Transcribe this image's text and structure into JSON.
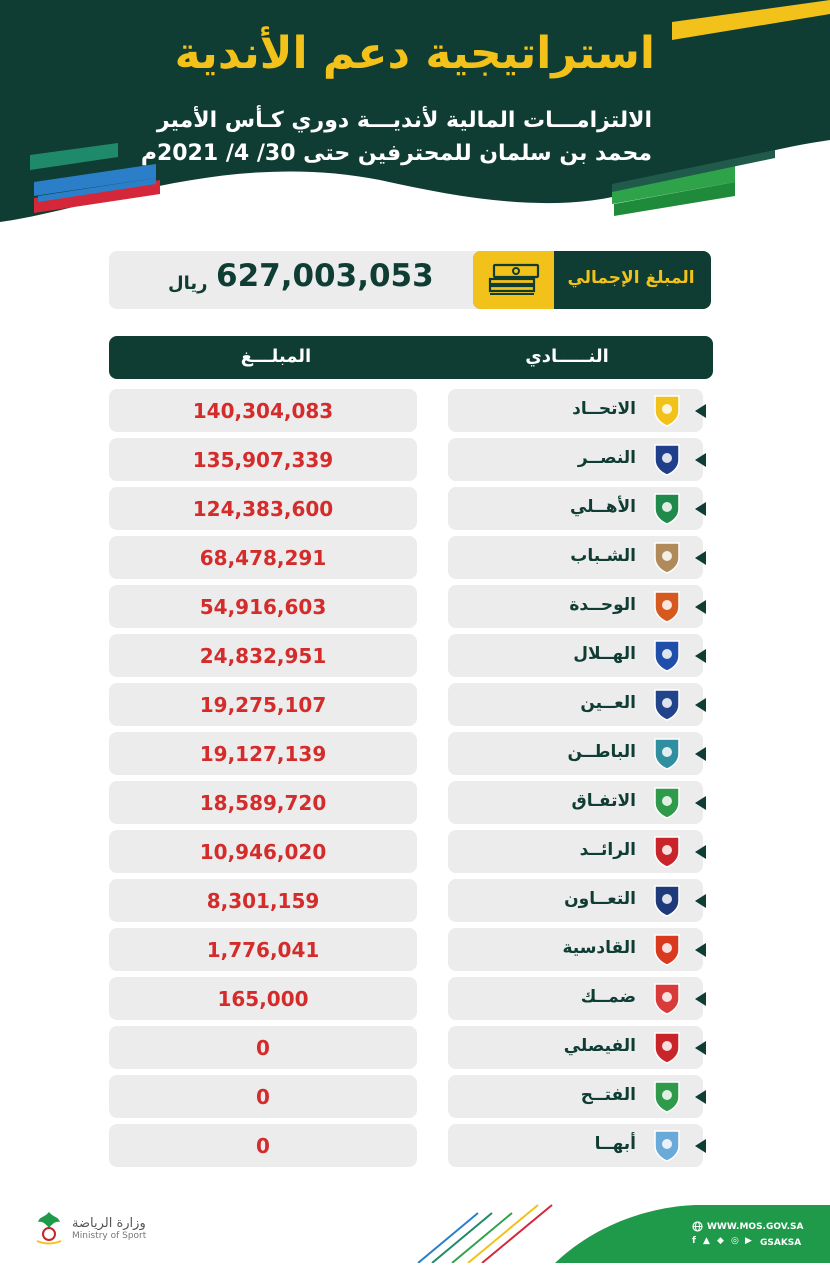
{
  "header": {
    "title": "استراتيجية دعم الأندية",
    "subtitle_line1": "الالتزامـــات المالية لأنديـــة دوري كـأس الأمير",
    "subtitle_line2": "محمد بن سلمان للمحترفين حتى 30/ 4/ 2021م"
  },
  "total": {
    "label": "المبلغ الإجمالي",
    "value": "627,003,053",
    "currency": "ريال"
  },
  "table": {
    "header_club": "النـــــادي",
    "header_amount": "المبلـــغ",
    "rows": [
      {
        "club": "الاتحــاد",
        "amount": "140,304,083",
        "logo_color": "#f2c21b"
      },
      {
        "club": "النصــر",
        "amount": "135,907,339",
        "logo_color": "#1f3f8a"
      },
      {
        "club": "الأهــلي",
        "amount": "124,383,600",
        "logo_color": "#1f8a4a"
      },
      {
        "club": "الشـباب",
        "amount": "68,478,291",
        "logo_color": "#b08a5a"
      },
      {
        "club": "الوحــدة",
        "amount": "54,916,603",
        "logo_color": "#d65a1f"
      },
      {
        "club": "الهــلال",
        "amount": "24,832,951",
        "logo_color": "#1f4fa8"
      },
      {
        "club": "العــين",
        "amount": "19,275,107",
        "logo_color": "#22448a"
      },
      {
        "club": "الباطــن",
        "amount": "19,127,139",
        "logo_color": "#2f8fa0"
      },
      {
        "club": "الاتفـاق",
        "amount": "18,589,720",
        "logo_color": "#2f9a4a"
      },
      {
        "club": "الرائــد",
        "amount": "10,946,020",
        "logo_color": "#c8242a"
      },
      {
        "club": "التعــاون",
        "amount": "8,301,159",
        "logo_color": "#1f3a7a"
      },
      {
        "club": "القادسية",
        "amount": "1,776,041",
        "logo_color": "#d93a1f"
      },
      {
        "club": "ضمــك",
        "amount": "165,000",
        "logo_color": "#d93a3a"
      },
      {
        "club": "الفيصلي",
        "amount": "0",
        "logo_color": "#c8242a"
      },
      {
        "club": "الفتــح",
        "amount": "0",
        "logo_color": "#2f9a4a"
      },
      {
        "club": "أبهــا",
        "amount": "0",
        "logo_color": "#6aaad8"
      }
    ]
  },
  "footer": {
    "ministry_ar": "وزارة الرياضة",
    "ministry_en": "Ministry of Sport",
    "website": "WWW.MOS.GOV.SA",
    "handle": "GSAKSA"
  },
  "colors": {
    "dark_green": "#0f3d33",
    "gold": "#f2c21b",
    "amount_red": "#d42b2b",
    "cell_gray": "#ececec"
  }
}
